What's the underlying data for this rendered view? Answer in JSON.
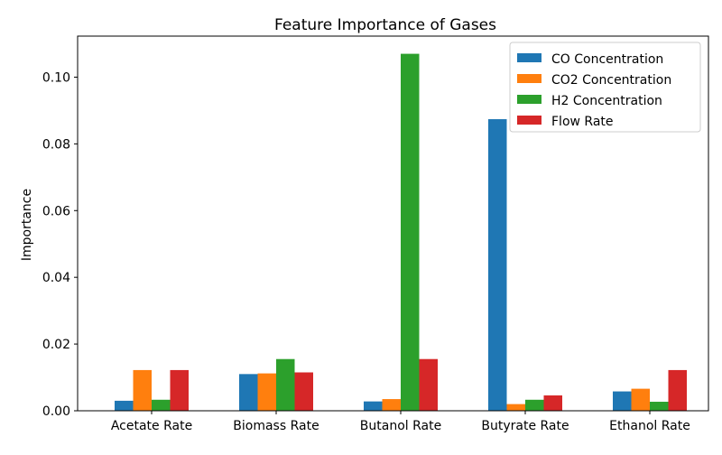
{
  "chart_data": {
    "type": "bar",
    "title": "Feature Importance of Gases",
    "xlabel": "",
    "ylabel": "Importance",
    "categories": [
      "Acetate Rate",
      "Biomass Rate",
      "Butanol Rate",
      "Butyrate Rate",
      "Ethanol Rate"
    ],
    "series": [
      {
        "name": "CO Concentration",
        "color": "#1f77b4",
        "values": [
          0.003,
          0.011,
          0.0028,
          0.0874,
          0.0058
        ]
      },
      {
        "name": "CO2 Concentration",
        "color": "#ff7f0e",
        "values": [
          0.0122,
          0.0112,
          0.0035,
          0.002,
          0.0066
        ]
      },
      {
        "name": "H2 Concentration",
        "color": "#2ca02c",
        "values": [
          0.0033,
          0.0155,
          0.107,
          0.0033,
          0.0027
        ]
      },
      {
        "name": "Flow Rate",
        "color": "#d62728",
        "values": [
          0.0122,
          0.0115,
          0.0155,
          0.0046,
          0.0122
        ]
      }
    ],
    "ylim": [
      0,
      0.1123
    ],
    "yticks": [
      0.0,
      0.02,
      0.04,
      0.06,
      0.08,
      0.1
    ],
    "ytick_labels": [
      "0.00",
      "0.02",
      "0.04",
      "0.06",
      "0.08",
      "0.10"
    ],
    "grid": false,
    "legend_position": "top-right"
  }
}
